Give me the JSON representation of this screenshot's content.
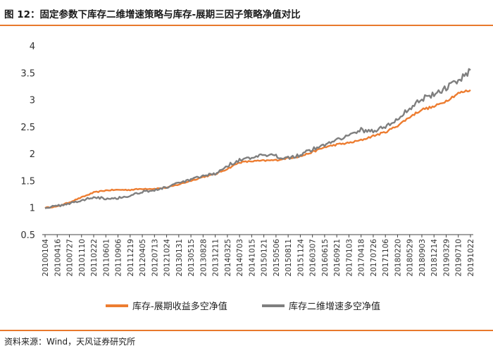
{
  "figure": {
    "title": "图 12：固定参数下库存二维增速策略与库存-展期三因子策略净值对比",
    "source": "资料来源：Wind，天风证券研究所",
    "accent_color": "#e8792c"
  },
  "chart_data": {
    "type": "line",
    "title": "",
    "xlabel": "",
    "ylabel": "",
    "ylim": [
      0.5,
      4
    ],
    "yticks": [
      0.5,
      1,
      1.5,
      2,
      2.5,
      3,
      3.5,
      4
    ],
    "grid": false,
    "legend_position": "bottom",
    "x_tick_labels": [
      "20100104",
      "20100416",
      "20100727",
      "20101110",
      "20110222",
      "20110601",
      "20110906",
      "20111219",
      "20120405",
      "20120713",
      "20121024",
      "20130131",
      "20130515",
      "20130828",
      "20131211",
      "20140325",
      "20140703",
      "20141015",
      "20150121",
      "20150506",
      "20150811",
      "20151124",
      "20160307",
      "20160615",
      "20160921",
      "20170103",
      "20170418",
      "20170726",
      "20171106",
      "20180220",
      "20180529",
      "20180903",
      "20181214",
      "20190329",
      "20190710",
      "20191022"
    ],
    "series": [
      {
        "name": "库存-展期收益多空净值",
        "color": "#ed7d31",
        "values": [
          1.0,
          1.02,
          1.1,
          1.19,
          1.28,
          1.32,
          1.33,
          1.33,
          1.35,
          1.35,
          1.37,
          1.43,
          1.5,
          1.57,
          1.62,
          1.72,
          1.84,
          1.86,
          1.87,
          1.88,
          1.92,
          1.95,
          2.03,
          2.12,
          2.17,
          2.2,
          2.25,
          2.33,
          2.4,
          2.52,
          2.68,
          2.82,
          2.87,
          2.98,
          3.12,
          3.18
        ]
      },
      {
        "name": "库存二维增速多空净值",
        "color": "#7f7f7f",
        "values": [
          1.0,
          1.03,
          1.08,
          1.13,
          1.2,
          1.17,
          1.18,
          1.22,
          1.3,
          1.32,
          1.38,
          1.45,
          1.52,
          1.58,
          1.63,
          1.78,
          1.88,
          1.92,
          1.97,
          1.95,
          1.93,
          1.98,
          2.08,
          2.16,
          2.28,
          2.33,
          2.44,
          2.42,
          2.5,
          2.63,
          2.85,
          3.02,
          3.1,
          3.22,
          3.35,
          3.55
        ]
      }
    ]
  }
}
